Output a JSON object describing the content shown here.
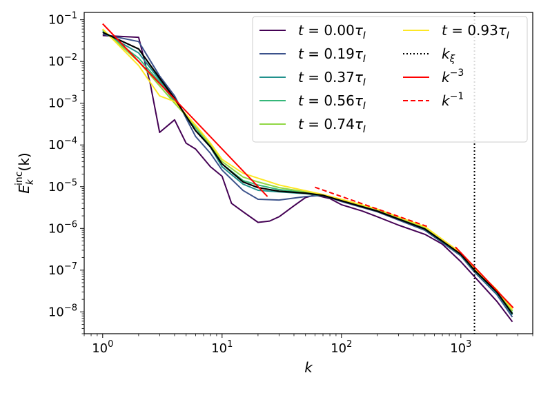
{
  "chart_data": {
    "type": "line",
    "xscale": "log",
    "yscale": "log",
    "xlim": [
      0.7,
      4000
    ],
    "ylim": [
      3e-09,
      0.15
    ],
    "xlabel": "k",
    "ylabel": "E_k^inc(k)",
    "x_ticks": [
      {
        "base": "10",
        "exp": "0",
        "value": 1
      },
      {
        "base": "10",
        "exp": "1",
        "value": 10
      },
      {
        "base": "10",
        "exp": "2",
        "value": 100
      },
      {
        "base": "10",
        "exp": "3",
        "value": 1000
      }
    ],
    "y_ticks": [
      {
        "base": "10",
        "exp": "−8",
        "value": 1e-08
      },
      {
        "base": "10",
        "exp": "−7",
        "value": 1e-07
      },
      {
        "base": "10",
        "exp": "−6",
        "value": 1e-06
      },
      {
        "base": "10",
        "exp": "−5",
        "value": 1e-05
      },
      {
        "base": "10",
        "exp": "−4",
        "value": 0.0001
      },
      {
        "base": "10",
        "exp": "−3",
        "value": 0.001
      },
      {
        "base": "10",
        "exp": "−2",
        "value": 0.01
      },
      {
        "base": "10",
        "exp": "−1",
        "value": 0.1
      }
    ],
    "grid": false,
    "legend_position": "top-right",
    "series": [
      {
        "name": "t = 0.00τ_I",
        "color": "#440154",
        "x": [
          1,
          2,
          2.5,
          3,
          4,
          5,
          6,
          8,
          10,
          12,
          15,
          20,
          25,
          30,
          40,
          50,
          60,
          80,
          100,
          150,
          200,
          300,
          500,
          700,
          1000,
          1300,
          2000,
          2700
        ],
        "y": [
          0.042,
          0.038,
          0.003,
          0.0002,
          0.0004,
          0.00011,
          8e-05,
          3e-05,
          1.78e-05,
          4e-06,
          2.5e-06,
          1.4e-06,
          1.5e-06,
          1.9e-06,
          3.5e-06,
          5.5e-06,
          6.3e-06,
          5.2e-06,
          3.7e-06,
          2.6e-06,
          1.9e-06,
          1.2e-06,
          7.2e-07,
          4.2e-07,
          1.6e-07,
          7e-08,
          1.8e-08,
          5.8e-09
        ]
      },
      {
        "name": "t = 0.19τ_I",
        "color": "#3b528b",
        "x": [
          1,
          2,
          3,
          4,
          6,
          8,
          10,
          15,
          20,
          30,
          50,
          70,
          100,
          200,
          500,
          1000,
          1300,
          2000,
          2700
        ],
        "y": [
          0.045,
          0.03,
          0.0045,
          0.0015,
          0.00016,
          6.3e-05,
          2.5e-05,
          8.1e-06,
          5e-06,
          4.8e-06,
          5.8e-06,
          6.2e-06,
          4.4e-06,
          2.5e-06,
          9e-07,
          2.2e-07,
          9e-08,
          2.6e-08,
          7.5e-09
        ]
      },
      {
        "name": "t = 0.37τ_I",
        "color": "#21918c",
        "x": [
          1,
          2,
          3,
          4,
          6,
          8,
          10,
          15,
          20,
          30,
          50,
          70,
          100,
          200,
          500,
          1000,
          1300,
          2000,
          2700
        ],
        "y": [
          0.05,
          0.016,
          0.0036,
          0.0012,
          0.00022,
          8.8e-05,
          3e-05,
          1.15e-05,
          8.2e-06,
          7.5e-06,
          6.8e-06,
          6.1e-06,
          4.6e-06,
          2.6e-06,
          9.5e-07,
          2.3e-07,
          9.5e-08,
          2.8e-08,
          8.5e-09
        ]
      },
      {
        "name": "t = 0.56τ_I",
        "color": "#35b779",
        "x": [
          1,
          2,
          3,
          4,
          6,
          8,
          10,
          15,
          20,
          30,
          50,
          70,
          100,
          200,
          500,
          1000,
          1300,
          2000,
          2700
        ],
        "y": [
          0.055,
          0.012,
          0.0032,
          0.0011,
          0.00026,
          9e-05,
          3.5e-05,
          1.4e-05,
          1.1e-05,
          8.5e-06,
          7.2e-06,
          6.2e-06,
          4.7e-06,
          2.7e-06,
          1e-06,
          2.4e-07,
          1e-07,
          3e-08,
          9.5e-09
        ]
      },
      {
        "name": "t = 0.74τ_I",
        "color": "#90d743",
        "x": [
          1,
          2,
          3,
          4,
          6,
          8,
          10,
          15,
          20,
          30,
          50,
          70,
          100,
          200,
          500,
          1000,
          1300,
          2000,
          2700
        ],
        "y": [
          0.058,
          0.01,
          0.0026,
          0.001,
          0.00028,
          0.0001,
          4e-05,
          1.7e-05,
          1.3e-05,
          9.5e-06,
          7.5e-06,
          6.3e-06,
          4.8e-06,
          2.8e-06,
          1.05e-06,
          2.5e-07,
          1.05e-07,
          3.2e-08,
          1.05e-08
        ]
      },
      {
        "name": "t = 0.93τ_I",
        "color": "#fde725",
        "x": [
          1,
          2,
          3,
          4,
          6,
          8,
          10,
          15,
          20,
          30,
          50,
          70,
          100,
          200,
          500,
          1000,
          1300,
          2000,
          2700
        ],
        "y": [
          0.06,
          0.008,
          0.0015,
          0.0011,
          0.0003,
          0.00011,
          4.5e-05,
          2.1e-05,
          1.6e-05,
          1.1e-05,
          8e-06,
          6.5e-06,
          5e-06,
          2.9e-06,
          1.1e-06,
          2.6e-07,
          1.1e-07,
          3.4e-08,
          1.15e-08
        ]
      },
      {
        "name": "mean",
        "color": "#000000",
        "x": [
          1,
          2,
          3,
          4,
          6,
          8,
          10,
          15,
          20,
          30,
          50,
          70,
          100,
          200,
          500,
          1000,
          1300,
          2000,
          2700
        ],
        "y": [
          0.05,
          0.02,
          0.004,
          0.0013,
          0.00022,
          9e-05,
          3.5e-05,
          1.3e-05,
          9.5e-06,
          7.8e-06,
          7e-06,
          6.2e-06,
          4.6e-06,
          2.6e-06,
          9.7e-07,
          2.4e-07,
          1e-07,
          3e-08,
          9e-09
        ]
      },
      {
        "name": "k^−3",
        "color": "#ff0000",
        "dash": "solid",
        "x": [
          1,
          24
        ],
        "y": [
          0.08,
          5.8e-06
        ]
      },
      {
        "name": "k^−3 (high k)",
        "color": "#ff0000",
        "dash": "solid",
        "x": [
          900,
          2750
        ],
        "y": [
          3.6e-07,
          1.25e-08
        ]
      },
      {
        "name": "k^−1",
        "color": "#ff0000",
        "dash": "dashed",
        "x": [
          60,
          520
        ],
        "y": [
          9.7e-06,
          1.12e-06
        ]
      },
      {
        "name": "k_ξ",
        "color": "#000000",
        "dash": "dotted",
        "vertical_x": 1300
      }
    ]
  },
  "legend": {
    "col1": [
      {
        "prefix": "t = ",
        "value": "0.00",
        "tau": "τ",
        "sub": "I",
        "color": "#440154",
        "style": "solid"
      },
      {
        "prefix": "t = ",
        "value": "0.19",
        "tau": "τ",
        "sub": "I",
        "color": "#3b528b",
        "style": "solid"
      },
      {
        "prefix": "t = ",
        "value": "0.37",
        "tau": "τ",
        "sub": "I",
        "color": "#21918c",
        "style": "solid"
      },
      {
        "prefix": "t = ",
        "value": "0.56",
        "tau": "τ",
        "sub": "I",
        "color": "#35b779",
        "style": "solid"
      },
      {
        "prefix": "t = ",
        "value": "0.74",
        "tau": "τ",
        "sub": "I",
        "color": "#90d743",
        "style": "solid"
      }
    ],
    "col2": [
      {
        "prefix": "t = ",
        "value": "0.93",
        "tau": "τ",
        "sub": "I",
        "color": "#fde725",
        "style": "solid"
      },
      {
        "label": "k",
        "sub": "ξ",
        "color": "#000000",
        "style": "dotted"
      },
      {
        "label": "k",
        "sup": "−3",
        "color": "#ff0000",
        "style": "solid"
      },
      {
        "label": "k",
        "sup": "−1",
        "color": "#ff0000",
        "style": "dashed"
      }
    ]
  },
  "labels": {
    "xlabel": "k",
    "ylabel_base": "E",
    "ylabel_sub": "k",
    "ylabel_sup": "inc",
    "ylabel_arg": "(k)"
  }
}
